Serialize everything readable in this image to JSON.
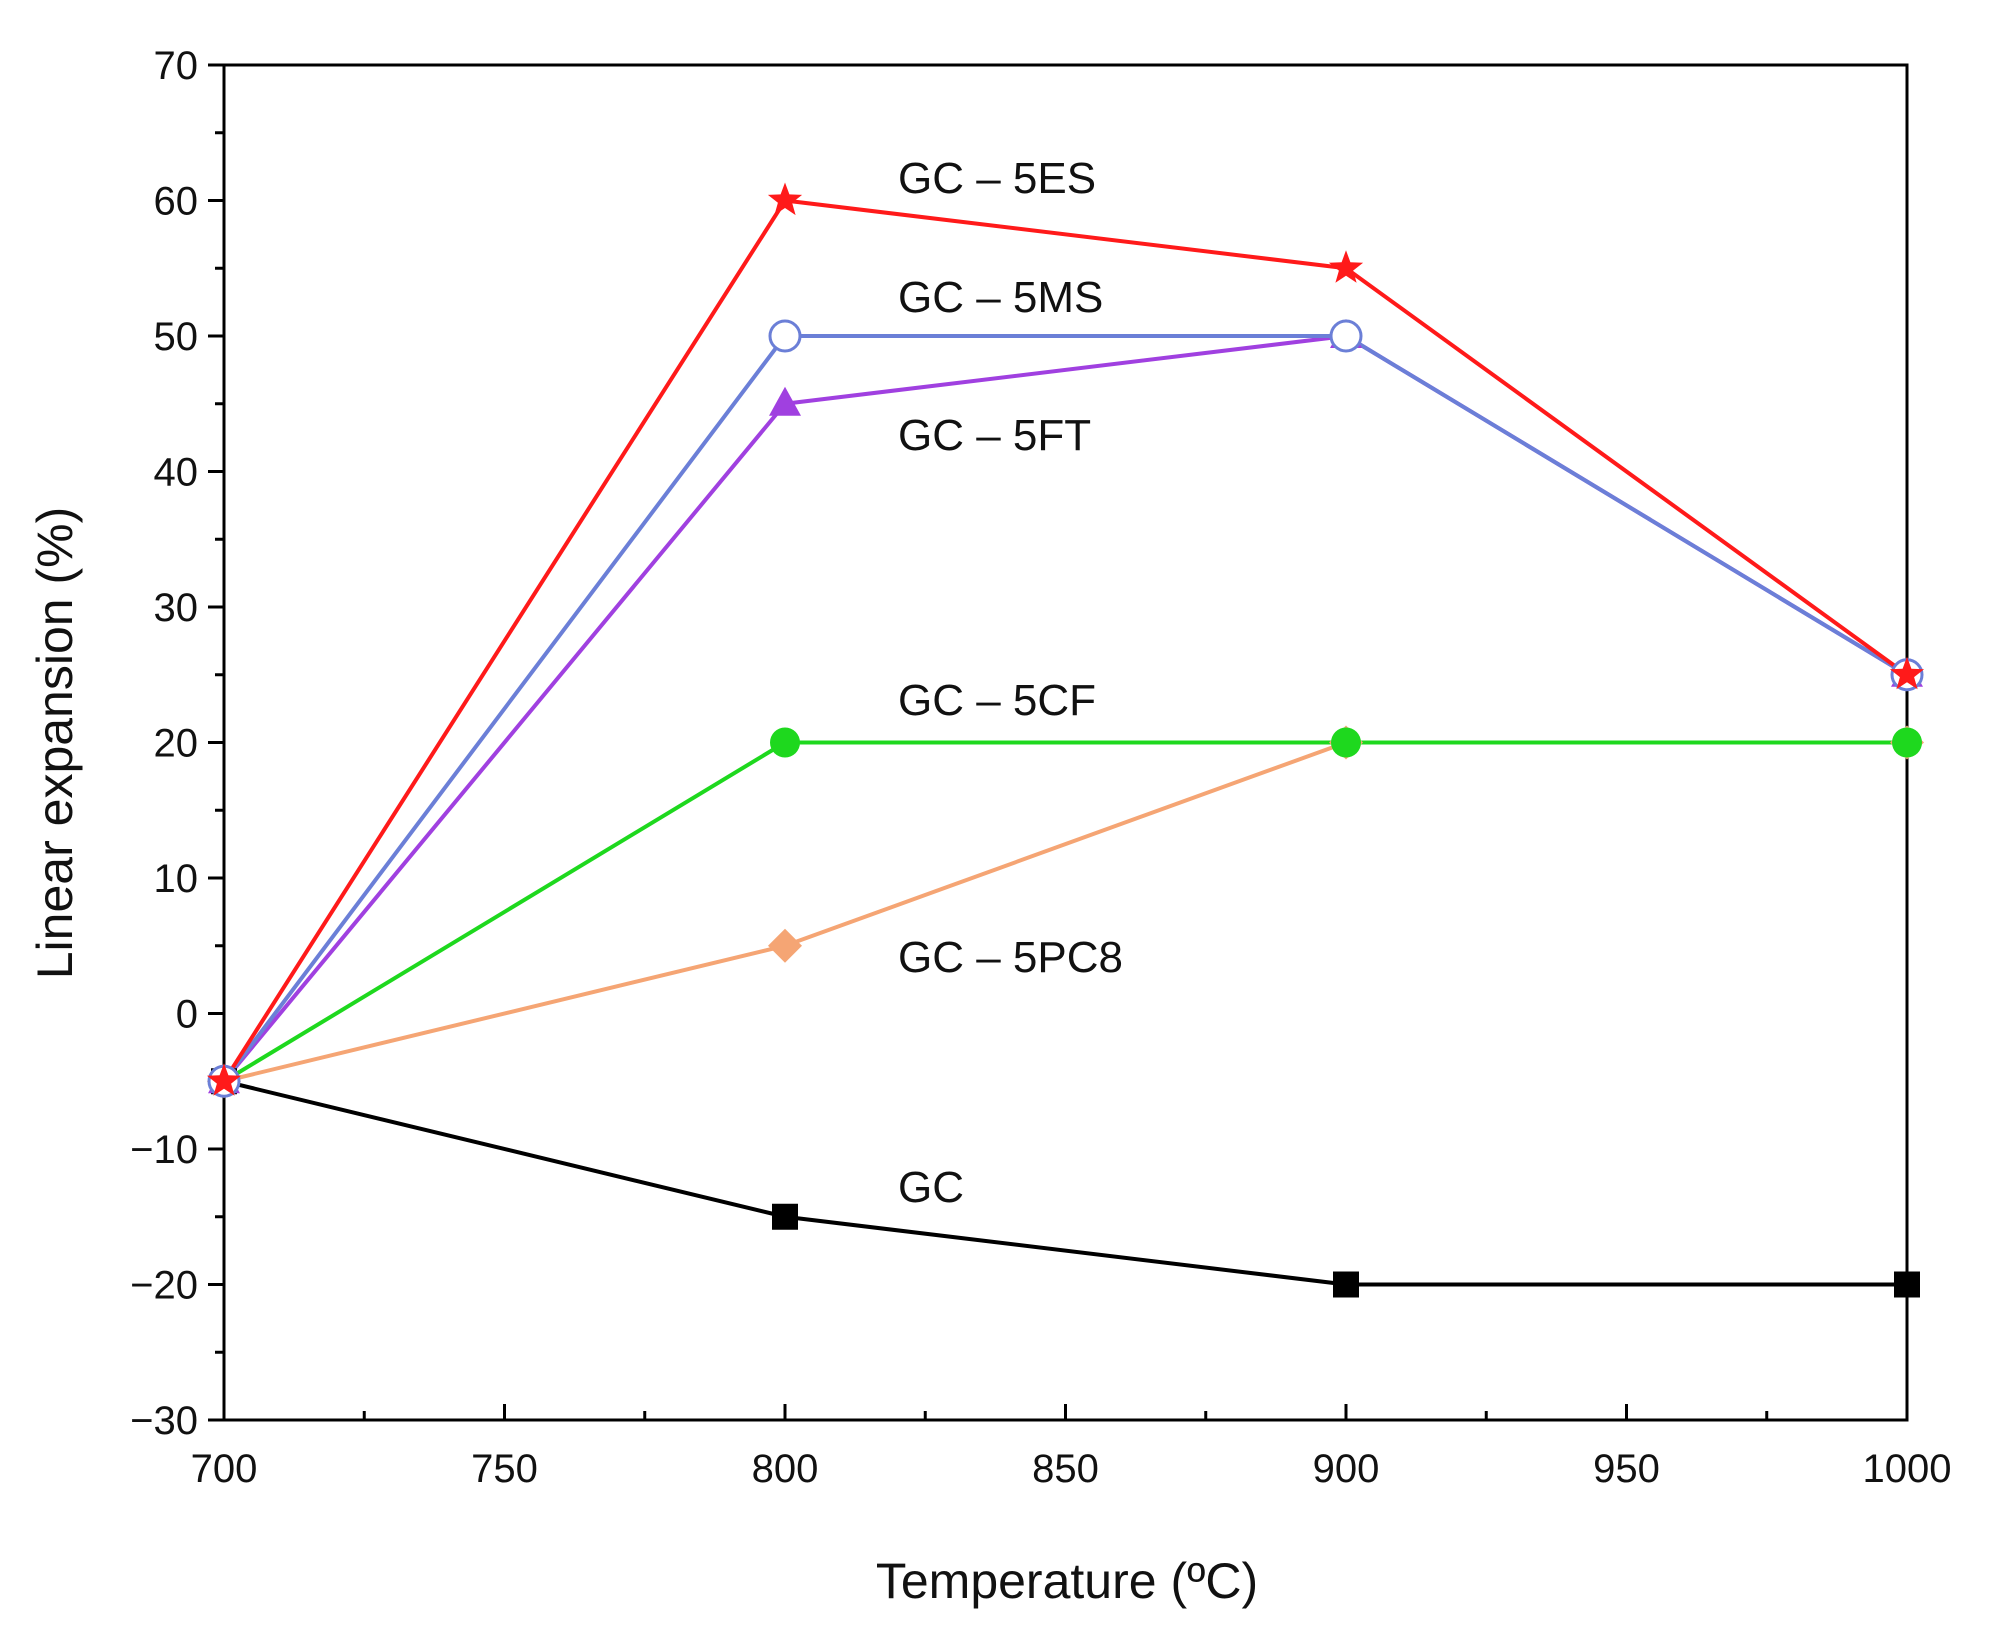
{
  "chart_data": {
    "type": "line",
    "xlabel": "Temperature (ºC)",
    "ylabel": "Linear expansion (%)",
    "xlim": [
      700,
      1000
    ],
    "ylim": [
      -30,
      70
    ],
    "xticks": [
      700,
      750,
      800,
      850,
      900,
      950,
      1000
    ],
    "yticks": [
      -30,
      -20,
      -10,
      0,
      10,
      20,
      30,
      40,
      50,
      60,
      70
    ],
    "xtick_labels": [
      "700",
      "750",
      "800",
      "850",
      "900",
      "950",
      "1000"
    ],
    "ytick_labels": [
      "−30",
      "−20",
      "−10",
      "0",
      "10",
      "20",
      "30",
      "40",
      "50",
      "60",
      "70"
    ],
    "grid": false,
    "x": [
      700,
      800,
      900,
      1000
    ],
    "series": [
      {
        "name": "GC – 5ES",
        "color": "#ff1a1a",
        "marker": "star",
        "values": [
          -5,
          60,
          55,
          25
        ]
      },
      {
        "name": "GC – 5MS",
        "color": "#6b7fd7",
        "marker": "open-circle",
        "values": [
          -5,
          50,
          50,
          25
        ]
      },
      {
        "name": "GC – 5FT",
        "color": "#a040e0",
        "marker": "triangle",
        "values": [
          -5,
          45,
          50,
          25
        ]
      },
      {
        "name": "GC – 5CF",
        "color": "#1ed81e",
        "marker": "circle",
        "values": [
          -5,
          20,
          20,
          20
        ]
      },
      {
        "name": "GC – 5PC8",
        "color": "#f5a574",
        "marker": "diamond",
        "values": [
          -5,
          5,
          20,
          20
        ]
      },
      {
        "name": "GC",
        "color": "#000000",
        "marker": "square",
        "values": [
          -5,
          -15,
          -20,
          -20
        ]
      }
    ]
  }
}
